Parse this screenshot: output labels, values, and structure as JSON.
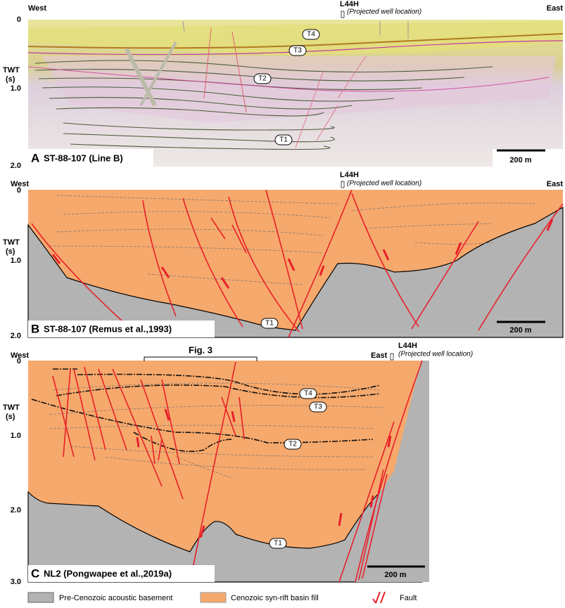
{
  "panels": [
    {
      "letter": "A",
      "title": "ST-88-107 (Line B)",
      "west": "West",
      "east": "East",
      "well": "L44H",
      "well_note": "(Projected well location)",
      "axis_title": "TWT",
      "axis_unit": "(s)",
      "ticks": [
        "0",
        "1.0",
        "2.0"
      ],
      "scale": "200 m",
      "horizons": [
        "T4",
        "T3",
        "T2",
        "T1"
      ]
    },
    {
      "letter": "B",
      "title": "ST-88-107 (Remus et al.,1993)",
      "west": "West",
      "east": "East",
      "well": "L44H",
      "well_note": "(Projected well location)",
      "axis_title": "TWT",
      "axis_unit": "(s)",
      "ticks": [
        "0",
        "1.0",
        "2.0"
      ],
      "scale": "200 m",
      "horizons": [
        "T1"
      ]
    },
    {
      "letter": "C",
      "title": "NL2 (Pongwapee et al.,2019a)",
      "west": "West",
      "east": "East",
      "well": "L44H",
      "well_note": "(Projected well location)",
      "axis_title": "TWT",
      "axis_unit": "(s)",
      "ticks": [
        "0",
        "1.0",
        "2.0",
        "3.0"
      ],
      "scale": "200 m",
      "horizons": [
        "T4",
        "T3",
        "T2",
        "T1"
      ]
    }
  ],
  "figure_ref": "Fig. 3",
  "legend": [
    "Pre-Cenozoic acoustic basement",
    "Cenozoic syn-rift basin fill",
    "Fault"
  ]
}
